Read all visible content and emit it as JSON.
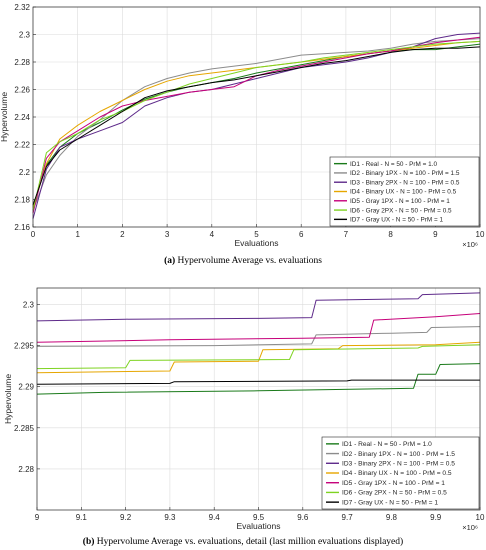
{
  "charts": [
    {
      "caption_tag": "(a)",
      "caption_text": "Hypervolume Average vs. evaluations",
      "xlabel": "Evaluations",
      "ylabel": "Hypervolume",
      "exponent": "×10⁶",
      "legend_position": "bottom-right",
      "grid": true
    },
    {
      "caption_tag": "(b)",
      "caption_text": "Hypervolume Average vs. evaluations, detail (last million evaluations displayed)",
      "xlabel": "Evaluations",
      "ylabel": "Hypervolume",
      "exponent": "×10⁶",
      "legend_position": "bottom-right",
      "grid": true
    }
  ],
  "chart_data": [
    {
      "type": "line",
      "xlabel": "Evaluations",
      "ylabel": "Hypervolume",
      "x_scale_note": "×10⁶",
      "xlim": [
        0,
        10
      ],
      "ylim": [
        2.16,
        2.32
      ],
      "xticks": [
        "0",
        "1",
        "2",
        "3",
        "4",
        "5",
        "6",
        "7",
        "8",
        "9",
        "10"
      ],
      "yticks": [
        "2.16",
        "2.18",
        "2.2",
        "2.22",
        "2.24",
        "2.26",
        "2.28",
        "2.3",
        "2.32"
      ],
      "grid": true,
      "legend": "bottom-right",
      "series": [
        {
          "name": "ID1 - Real - N = 50 - PrM = 1.0",
          "color": "#1a7a1a",
          "x": [
            0,
            0.3,
            0.6,
            1.0,
            1.5,
            2.0,
            2.5,
            3.0,
            3.5,
            4.0,
            4.5,
            5.0,
            5.5,
            6.0,
            6.5,
            7.0,
            7.5,
            8.0,
            8.5,
            9.0,
            9.5,
            10.0
          ],
          "y": [
            2.175,
            2.205,
            2.218,
            2.228,
            2.236,
            2.245,
            2.253,
            2.258,
            2.262,
            2.265,
            2.268,
            2.272,
            2.275,
            2.278,
            2.281,
            2.284,
            2.286,
            2.288,
            2.289,
            2.289,
            2.291,
            2.293
          ]
        },
        {
          "name": "ID2 - Binary 1PX - N = 100 - PrM = 1.5",
          "color": "#8c8c8c",
          "x": [
            0,
            0.3,
            0.6,
            1.0,
            1.5,
            2.0,
            2.5,
            3.0,
            3.5,
            4.0,
            4.5,
            5.0,
            5.5,
            6.0,
            6.5,
            7.0,
            7.5,
            8.0,
            8.5,
            9.0,
            9.5,
            10.0
          ],
          "y": [
            2.172,
            2.198,
            2.212,
            2.226,
            2.238,
            2.252,
            2.262,
            2.268,
            2.272,
            2.275,
            2.277,
            2.279,
            2.282,
            2.285,
            2.286,
            2.287,
            2.288,
            2.29,
            2.293,
            2.295,
            2.296,
            2.297
          ]
        },
        {
          "name": "ID3 - Binary 2PX - N = 100 - PrM = 0.5",
          "color": "#5e2a8a",
          "x": [
            0,
            0.3,
            0.6,
            1.0,
            1.5,
            2.0,
            2.5,
            3.0,
            3.5,
            4.0,
            4.5,
            5.0,
            5.5,
            6.0,
            6.5,
            7.0,
            7.5,
            8.0,
            8.5,
            9.0,
            9.5,
            10.0
          ],
          "y": [
            2.166,
            2.202,
            2.218,
            2.224,
            2.23,
            2.236,
            2.248,
            2.254,
            2.258,
            2.26,
            2.264,
            2.268,
            2.272,
            2.276,
            2.278,
            2.28,
            2.283,
            2.287,
            2.291,
            2.297,
            2.3,
            2.301
          ]
        },
        {
          "name": "ID4 - Binary UX - N = 100 - PrM = 0.5",
          "color": "#e6a600",
          "x": [
            0,
            0.3,
            0.6,
            1.0,
            1.5,
            2.0,
            2.5,
            3.0,
            3.5,
            4.0,
            4.5,
            5.0,
            5.5,
            6.0,
            6.5,
            7.0,
            7.5,
            8.0,
            8.5,
            9.0,
            9.5,
            10.0
          ],
          "y": [
            2.174,
            2.206,
            2.224,
            2.234,
            2.244,
            2.252,
            2.26,
            2.266,
            2.27,
            2.272,
            2.274,
            2.276,
            2.278,
            2.28,
            2.282,
            2.284,
            2.286,
            2.288,
            2.29,
            2.292,
            2.294,
            2.295
          ]
        },
        {
          "name": "ID5 - Gray 1PX - N = 100 - PrM = 1",
          "color": "#c6007a",
          "x": [
            0,
            0.3,
            0.6,
            1.0,
            1.5,
            2.0,
            2.5,
            3.0,
            3.5,
            4.0,
            4.5,
            5.0,
            5.5,
            6.0,
            6.5,
            7.0,
            7.5,
            8.0,
            8.5,
            9.0,
            9.5,
            10.0
          ],
          "y": [
            2.17,
            2.21,
            2.222,
            2.23,
            2.24,
            2.248,
            2.252,
            2.255,
            2.258,
            2.26,
            2.262,
            2.27,
            2.274,
            2.277,
            2.28,
            2.283,
            2.286,
            2.288,
            2.291,
            2.294,
            2.296,
            2.298
          ]
        },
        {
          "name": "ID6 - Gray 2PX - N = 50 - PrM = 0.5",
          "color": "#7ed321",
          "x": [
            0,
            0.3,
            0.6,
            1.0,
            1.5,
            2.0,
            2.5,
            3.0,
            3.5,
            4.0,
            4.5,
            5.0,
            5.5,
            6.0,
            6.5,
            7.0,
            7.5,
            8.0,
            8.5,
            9.0,
            9.5,
            10.0
          ],
          "y": [
            2.172,
            2.214,
            2.222,
            2.228,
            2.238,
            2.244,
            2.252,
            2.258,
            2.264,
            2.268,
            2.272,
            2.276,
            2.278,
            2.28,
            2.283,
            2.285,
            2.287,
            2.289,
            2.291,
            2.293,
            2.294,
            2.295
          ]
        },
        {
          "name": "ID7 - Gray UX - N = 50 - PrM = 1",
          "color": "#000000",
          "x": [
            0,
            0.3,
            0.6,
            1.0,
            1.5,
            2.0,
            2.5,
            3.0,
            3.5,
            4.0,
            4.5,
            5.0,
            5.5,
            6.0,
            6.5,
            7.0,
            7.5,
            8.0,
            8.5,
            9.0,
            9.5,
            10.0
          ],
          "y": [
            2.176,
            2.204,
            2.216,
            2.224,
            2.234,
            2.244,
            2.254,
            2.259,
            2.262,
            2.265,
            2.267,
            2.27,
            2.273,
            2.276,
            2.279,
            2.281,
            2.284,
            2.287,
            2.289,
            2.29,
            2.29,
            2.291
          ]
        }
      ]
    },
    {
      "type": "line",
      "xlabel": "Evaluations",
      "ylabel": "Hypervolume",
      "x_scale_note": "×10⁶",
      "xlim": [
        9,
        10
      ],
      "ylim": [
        2.275,
        2.302
      ],
      "xticks": [
        "9",
        "9.1",
        "9.2",
        "9.3",
        "9.4",
        "9.5",
        "9.6",
        "9.7",
        "9.8",
        "9.9",
        "10"
      ],
      "yticks": [
        "2.28",
        "2.285",
        "2.29",
        "2.295",
        "2.3"
      ],
      "grid": true,
      "legend": "bottom-right",
      "series": [
        {
          "name": "ID1 - Real - N = 50 - PrM = 1.0",
          "color": "#1a7a1a",
          "x": [
            9.0,
            9.15,
            9.5,
            9.85,
            9.86,
            9.9,
            9.91,
            10.0
          ],
          "y": [
            2.2891,
            2.2893,
            2.2895,
            2.2898,
            2.2915,
            2.2915,
            2.2927,
            2.2928
          ]
        },
        {
          "name": "ID2 - Binary 1PX - N = 100 - PrM = 1.5",
          "color": "#8c8c8c",
          "x": [
            9.0,
            9.4,
            9.62,
            9.63,
            9.8,
            9.88,
            9.89,
            10.0
          ],
          "y": [
            2.2949,
            2.295,
            2.2952,
            2.2963,
            2.2965,
            2.2966,
            2.2972,
            2.2973
          ]
        },
        {
          "name": "ID3 - Binary 2PX - N = 100 - PrM = 0.5",
          "color": "#5e2a8a",
          "x": [
            9.0,
            9.2,
            9.5,
            9.62,
            9.63,
            9.86,
            9.87,
            10.0
          ],
          "y": [
            2.298,
            2.2982,
            2.2983,
            2.2984,
            2.3005,
            2.3007,
            2.3012,
            2.3014
          ]
        },
        {
          "name": "ID4 - Binary UX - N = 100 - PrM = 0.5",
          "color": "#e6a600",
          "x": [
            9.0,
            9.3,
            9.31,
            9.5,
            9.51,
            9.68,
            9.69,
            9.9,
            10.0
          ],
          "y": [
            2.2917,
            2.2919,
            2.293,
            2.2931,
            2.2945,
            2.2946,
            2.295,
            2.2951,
            2.2954
          ]
        },
        {
          "name": "ID5 - Gray 1PX - N = 100 - PrM = 1",
          "color": "#c6007a",
          "x": [
            9.0,
            9.3,
            9.6,
            9.75,
            9.76,
            9.9,
            10.0
          ],
          "y": [
            2.2954,
            2.2957,
            2.2959,
            2.296,
            2.2981,
            2.2985,
            2.2989
          ]
        },
        {
          "name": "ID6 - Gray 2PX - N = 50 - PrM = 0.5",
          "color": "#7ed321",
          "x": [
            9.0,
            9.2,
            9.21,
            9.57,
            9.58,
            9.86,
            9.87,
            10.0
          ],
          "y": [
            2.2922,
            2.2923,
            2.2932,
            2.2933,
            2.2945,
            2.2947,
            2.2949,
            2.2951
          ]
        },
        {
          "name": "ID7 - Gray UX - N = 50 - PrM = 1",
          "color": "#000000",
          "x": [
            9.0,
            9.3,
            9.31,
            9.7,
            9.71,
            10.0
          ],
          "y": [
            2.2903,
            2.2904,
            2.2906,
            2.2907,
            2.2908,
            2.2908
          ]
        }
      ]
    }
  ]
}
